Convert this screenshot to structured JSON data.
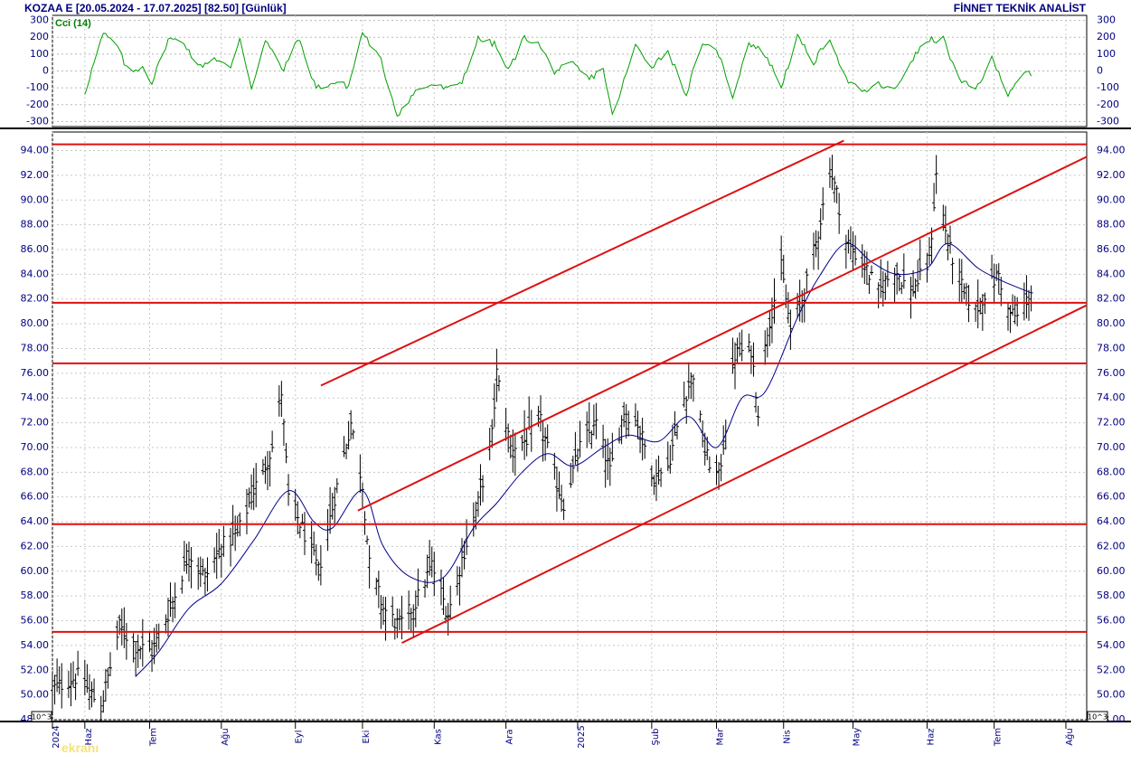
{
  "header": {
    "title": "KOZAA E  [20.05.2024 - 17.07.2025]  [82.50]  [Günlük]",
    "brand": "FİNNET TEKNİK ANALİST"
  },
  "indicator": {
    "label": "Cci (14)",
    "color": "#00a000",
    "ticks": [
      300,
      200,
      100,
      0,
      -100,
      -200,
      -300
    ],
    "ticks_text": [
      "300",
      "200",
      "100",
      "0",
      "-100",
      "-200",
      "-300"
    ],
    "ylim": [
      -330,
      330
    ]
  },
  "colors": {
    "price_bars": "#000000",
    "moving_average": "#00008b",
    "trendlines": "#dd1010",
    "axis_text": "#000080"
  },
  "watermark": "ekranı",
  "chart_data": {
    "type": "ohlc",
    "title": "KOZAA E  [20.05.2024 - 17.07.2025]  [82.50]  [Günlük]",
    "last_close": 82.5,
    "ylim": [
      48.0,
      95.5
    ],
    "y_ticks": [
      94,
      92,
      90,
      88,
      86,
      84,
      82,
      80,
      78,
      76,
      74,
      72,
      70,
      68,
      66,
      64,
      62,
      60,
      58,
      56,
      54,
      52,
      50,
      48
    ],
    "y_ticks_text": [
      "94.00",
      "92.00",
      "90.00",
      "88.00",
      "86.00",
      "84.00",
      "82.00",
      "80.00",
      "78.00",
      "76.00",
      "74.00",
      "72.00",
      "70.00",
      "68.00",
      "66.00",
      "64.00",
      "62.00",
      "60.00",
      "58.00",
      "56.00",
      "54.00",
      "52.00",
      "50.00",
      "48.00"
    ],
    "y_unit_text": "10^3",
    "x_range": [
      "2024-05-20",
      "2025-08-10"
    ],
    "x_labels": [
      {
        "date": "2024-05-20",
        "text": "2024"
      },
      {
        "date": "2024-06-03",
        "text": "Haz"
      },
      {
        "date": "2024-07-01",
        "text": "Tem"
      },
      {
        "date": "2024-08-01",
        "text": "Ağu"
      },
      {
        "date": "2024-09-02",
        "text": "Eyl"
      },
      {
        "date": "2024-10-01",
        "text": "Eki"
      },
      {
        "date": "2024-11-01",
        "text": "Kas"
      },
      {
        "date": "2024-12-02",
        "text": "Ara"
      },
      {
        "date": "2025-01-02",
        "text": "2025"
      },
      {
        "date": "2025-02-03",
        "text": "Şub"
      },
      {
        "date": "2025-03-03",
        "text": "Mar"
      },
      {
        "date": "2025-04-01",
        "text": "Nis"
      },
      {
        "date": "2025-05-01",
        "text": "May"
      },
      {
        "date": "2025-06-02",
        "text": "Haz"
      },
      {
        "date": "2025-07-01",
        "text": "Tem"
      },
      {
        "date": "2025-08-01",
        "text": "Ağu"
      }
    ],
    "anchors": [
      [
        "2024-05-20",
        50.5
      ],
      [
        "2024-05-31",
        51.5
      ],
      [
        "2024-06-10",
        49.0
      ],
      [
        "2024-06-18",
        55.5
      ],
      [
        "2024-06-25",
        54.0
      ],
      [
        "2024-07-02",
        53.5
      ],
      [
        "2024-07-10",
        57.0
      ],
      [
        "2024-07-18",
        61.5
      ],
      [
        "2024-07-25",
        59.5
      ],
      [
        "2024-08-01",
        62.0
      ],
      [
        "2024-08-08",
        63.0
      ],
      [
        "2024-08-15",
        66.5
      ],
      [
        "2024-08-23",
        70.0
      ],
      [
        "2024-08-27",
        74.5
      ],
      [
        "2024-08-30",
        66.0
      ],
      [
        "2024-09-06",
        63.0
      ],
      [
        "2024-09-12",
        60.0
      ],
      [
        "2024-09-19",
        66.0
      ],
      [
        "2024-09-26",
        72.0
      ],
      [
        "2024-10-01",
        67.0
      ],
      [
        "2024-10-04",
        60.5
      ],
      [
        "2024-10-10",
        57.0
      ],
      [
        "2024-10-17",
        55.5
      ],
      [
        "2024-10-24",
        57.5
      ],
      [
        "2024-10-31",
        60.5
      ],
      [
        "2024-11-07",
        56.5
      ],
      [
        "2024-11-13",
        61.0
      ],
      [
        "2024-11-20",
        65.5
      ],
      [
        "2024-11-26",
        71.0
      ],
      [
        "2024-11-28",
        76.0
      ],
      [
        "2024-12-04",
        70.0
      ],
      [
        "2024-12-10",
        70.5
      ],
      [
        "2024-12-17",
        72.0
      ],
      [
        "2024-12-24",
        67.0
      ],
      [
        "2024-12-27",
        65.5
      ],
      [
        "2025-01-03",
        70.0
      ],
      [
        "2025-01-10",
        72.0
      ],
      [
        "2025-01-16",
        68.0
      ],
      [
        "2025-01-22",
        73.0
      ],
      [
        "2025-01-28",
        72.0
      ],
      [
        "2025-02-04",
        67.5
      ],
      [
        "2025-02-10",
        68.5
      ],
      [
        "2025-02-17",
        74.0
      ],
      [
        "2025-02-21",
        76.0
      ],
      [
        "2025-02-26",
        69.5
      ],
      [
        "2025-03-04",
        67.5
      ],
      [
        "2025-03-11",
        77.5
      ],
      [
        "2025-03-18",
        78.0
      ],
      [
        "2025-03-21",
        73.0
      ],
      [
        "2025-03-25",
        79.5
      ],
      [
        "2025-03-31",
        84.5
      ],
      [
        "2025-04-04",
        79.5
      ],
      [
        "2025-04-10",
        82.5
      ],
      [
        "2025-04-15",
        86.5
      ],
      [
        "2025-04-21",
        92.5
      ],
      [
        "2025-04-24",
        90.5
      ],
      [
        "2025-04-28",
        86.5
      ],
      [
        "2025-05-05",
        85.0
      ],
      [
        "2025-05-12",
        82.5
      ],
      [
        "2025-05-19",
        84.5
      ],
      [
        "2025-05-26",
        82.5
      ],
      [
        "2025-06-03",
        85.0
      ],
      [
        "2025-06-06",
        92.0
      ],
      [
        "2025-06-11",
        86.5
      ],
      [
        "2025-06-17",
        83.0
      ],
      [
        "2025-06-23",
        81.0
      ],
      [
        "2025-06-27",
        82.5
      ],
      [
        "2025-07-03",
        84.0
      ],
      [
        "2025-07-07",
        81.0
      ],
      [
        "2025-07-11",
        80.5
      ],
      [
        "2025-07-17",
        82.5
      ]
    ],
    "moving_average": [
      [
        "2024-06-25",
        51.5
      ],
      [
        "2024-07-05",
        53.5
      ],
      [
        "2024-07-18",
        57.0
      ],
      [
        "2024-08-01",
        59.0
      ],
      [
        "2024-08-15",
        62.5
      ],
      [
        "2024-08-30",
        66.5
      ],
      [
        "2024-09-10",
        64.0
      ],
      [
        "2024-09-18",
        63.5
      ],
      [
        "2024-10-01",
        66.5
      ],
      [
        "2024-10-10",
        62.0
      ],
      [
        "2024-10-22",
        59.5
      ],
      [
        "2024-11-05",
        59.5
      ],
      [
        "2024-11-18",
        63.5
      ],
      [
        "2024-11-28",
        65.5
      ],
      [
        "2024-12-09",
        68.0
      ],
      [
        "2024-12-20",
        69.5
      ],
      [
        "2024-12-31",
        68.5
      ],
      [
        "2025-01-13",
        70.0
      ],
      [
        "2025-01-24",
        71.0
      ],
      [
        "2025-02-06",
        70.5
      ],
      [
        "2025-02-19",
        72.5
      ],
      [
        "2025-03-03",
        70.0
      ],
      [
        "2025-03-14",
        74.0
      ],
      [
        "2025-03-24",
        74.5
      ],
      [
        "2025-04-07",
        80.5
      ],
      [
        "2025-04-17",
        84.0
      ],
      [
        "2025-04-28",
        86.5
      ],
      [
        "2025-05-09",
        85.0
      ],
      [
        "2025-05-20",
        84.0
      ],
      [
        "2025-06-02",
        84.5
      ],
      [
        "2025-06-11",
        86.5
      ],
      [
        "2025-06-24",
        84.5
      ],
      [
        "2025-07-04",
        83.5
      ],
      [
        "2025-07-17",
        82.5
      ]
    ],
    "horizontal_levels": [
      94.5,
      81.7,
      76.8,
      63.8,
      55.1
    ],
    "trendlines": [
      {
        "from": [
          "2024-09-13",
          75.0
        ],
        "to": [
          "2025-04-27",
          94.8
        ]
      },
      {
        "from": [
          "2024-09-29",
          64.9
        ],
        "to": [
          "2025-08-10",
          93.5
        ]
      },
      {
        "from": [
          "2024-10-18",
          54.2
        ],
        "to": [
          "2025-08-10",
          81.5
        ]
      }
    ],
    "cci": [
      [
        "2024-06-03",
        -130
      ],
      [
        "2024-06-07",
        50
      ],
      [
        "2024-06-11",
        220
      ],
      [
        "2024-06-17",
        150
      ],
      [
        "2024-06-22",
        -20
      ],
      [
        "2024-06-28",
        30
      ],
      [
        "2024-07-02",
        -70
      ],
      [
        "2024-07-09",
        190
      ],
      [
        "2024-07-16",
        170
      ],
      [
        "2024-07-22",
        20
      ],
      [
        "2024-07-29",
        80
      ],
      [
        "2024-08-05",
        10
      ],
      [
        "2024-08-09",
        200
      ],
      [
        "2024-08-14",
        -100
      ],
      [
        "2024-08-20",
        180
      ],
      [
        "2024-08-28",
        0
      ],
      [
        "2024-09-03",
        200
      ],
      [
        "2024-09-11",
        -100
      ],
      [
        "2024-09-19",
        -70
      ],
      [
        "2024-09-25",
        -90
      ],
      [
        "2024-10-01",
        230
      ],
      [
        "2024-10-09",
        60
      ],
      [
        "2024-10-16",
        -260
      ],
      [
        "2024-10-24",
        -120
      ],
      [
        "2024-10-31",
        -80
      ],
      [
        "2024-11-07",
        -110
      ],
      [
        "2024-11-13",
        -60
      ],
      [
        "2024-11-20",
        190
      ],
      [
        "2024-11-27",
        160
      ],
      [
        "2024-12-03",
        0
      ],
      [
        "2024-12-10",
        200
      ],
      [
        "2024-12-16",
        160
      ],
      [
        "2024-12-23",
        0
      ],
      [
        "2024-12-31",
        40
      ],
      [
        "2025-01-07",
        -50
      ],
      [
        "2025-01-13",
        20
      ],
      [
        "2025-01-17",
        -270
      ],
      [
        "2025-01-27",
        150
      ],
      [
        "2025-02-03",
        30
      ],
      [
        "2025-02-10",
        120
      ],
      [
        "2025-02-18",
        -140
      ],
      [
        "2025-02-24",
        140
      ],
      [
        "2025-03-03",
        140
      ],
      [
        "2025-03-10",
        -150
      ],
      [
        "2025-03-17",
        170
      ],
      [
        "2025-03-24",
        100
      ],
      [
        "2025-03-31",
        -90
      ],
      [
        "2025-04-07",
        200
      ],
      [
        "2025-04-14",
        50
      ],
      [
        "2025-04-21",
        200
      ],
      [
        "2025-04-28",
        -50
      ],
      [
        "2025-05-05",
        -130
      ],
      [
        "2025-05-12",
        -80
      ],
      [
        "2025-05-19",
        -120
      ],
      [
        "2025-05-26",
        60
      ],
      [
        "2025-06-02",
        180
      ],
      [
        "2025-06-09",
        190
      ],
      [
        "2025-06-16",
        -60
      ],
      [
        "2025-06-23",
        -110
      ],
      [
        "2025-06-30",
        70
      ],
      [
        "2025-07-07",
        -130
      ],
      [
        "2025-07-14",
        0
      ],
      [
        "2025-07-17",
        -30
      ]
    ],
    "grid": true,
    "legend": "none"
  }
}
